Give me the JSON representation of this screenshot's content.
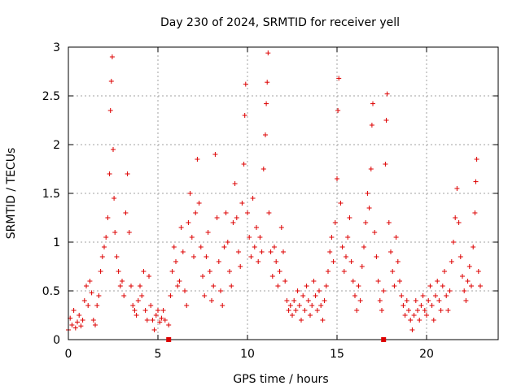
{
  "chart_data": {
    "type": "scatter",
    "title": "Day 230 of 2024, SRMTID for receiver yell",
    "xlabel": "GPS time / hours",
    "ylabel": "SRMTID / TECUs",
    "xlim": [
      0,
      24
    ],
    "ylim": [
      0,
      3
    ],
    "grid": true,
    "marker": "plus",
    "color": "#dd0000",
    "x_ticks": [
      {
        "value": 0,
        "label": "0"
      },
      {
        "value": 5,
        "label": "5"
      },
      {
        "value": 10,
        "label": "10"
      },
      {
        "value": 15,
        "label": "15"
      },
      {
        "value": 20,
        "label": "20"
      }
    ],
    "y_ticks": [
      {
        "value": 0,
        "label": "0"
      },
      {
        "value": 0.5,
        "label": "0.5"
      },
      {
        "value": 1,
        "label": "1"
      },
      {
        "value": 1.5,
        "label": "1.5"
      },
      {
        "value": 2,
        "label": "2"
      },
      {
        "value": 2.5,
        "label": "2.5"
      },
      {
        "value": 3,
        "label": "3"
      }
    ],
    "series": [
      {
        "name": "SRMTID",
        "points": [
          [
            0.0,
            0.1
          ],
          [
            0.1,
            0.22
          ],
          [
            0.2,
            0.15
          ],
          [
            0.3,
            0.3
          ],
          [
            0.4,
            0.12
          ],
          [
            0.5,
            0.18
          ],
          [
            0.6,
            0.25
          ],
          [
            0.7,
            0.14
          ],
          [
            0.8,
            0.2
          ],
          [
            0.9,
            0.4
          ],
          [
            1.0,
            0.55
          ],
          [
            1.1,
            0.35
          ],
          [
            1.2,
            0.6
          ],
          [
            1.3,
            0.48
          ],
          [
            1.4,
            0.2
          ],
          [
            1.5,
            0.15
          ],
          [
            1.6,
            0.35
          ],
          [
            1.7,
            0.45
          ],
          [
            1.8,
            0.7
          ],
          [
            1.9,
            0.85
          ],
          [
            2.0,
            0.95
          ],
          [
            2.1,
            1.05
          ],
          [
            2.2,
            1.25
          ],
          [
            2.3,
            1.7
          ],
          [
            2.35,
            2.35
          ],
          [
            2.4,
            2.65
          ],
          [
            2.45,
            2.9
          ],
          [
            2.5,
            1.95
          ],
          [
            2.55,
            1.45
          ],
          [
            2.6,
            1.1
          ],
          [
            2.7,
            0.85
          ],
          [
            2.8,
            0.7
          ],
          [
            2.9,
            0.55
          ],
          [
            3.0,
            0.6
          ],
          [
            3.1,
            0.45
          ],
          [
            3.2,
            1.3
          ],
          [
            3.3,
            1.7
          ],
          [
            3.4,
            1.1
          ],
          [
            3.5,
            0.55
          ],
          [
            3.6,
            0.35
          ],
          [
            3.7,
            0.3
          ],
          [
            3.8,
            0.25
          ],
          [
            3.9,
            0.4
          ],
          [
            4.0,
            0.55
          ],
          [
            4.1,
            0.45
          ],
          [
            4.2,
            0.7
          ],
          [
            4.3,
            0.3
          ],
          [
            4.4,
            0.2
          ],
          [
            4.5,
            0.65
          ],
          [
            4.6,
            0.35
          ],
          [
            4.7,
            0.2
          ],
          [
            4.8,
            0.1
          ],
          [
            4.9,
            0.25
          ],
          [
            5.0,
            0.3
          ],
          [
            5.1,
            0.18
          ],
          [
            5.2,
            0.22
          ],
          [
            5.3,
            0.3
          ],
          [
            5.4,
            0.2
          ],
          [
            5.6,
            0.15
          ],
          [
            5.7,
            0.45
          ],
          [
            5.8,
            0.7
          ],
          [
            5.9,
            0.95
          ],
          [
            6.0,
            0.8
          ],
          [
            6.1,
            0.55
          ],
          [
            6.2,
            0.6
          ],
          [
            6.3,
            1.15
          ],
          [
            6.4,
            0.9
          ],
          [
            6.5,
            0.5
          ],
          [
            6.6,
            0.35
          ],
          [
            6.7,
            1.2
          ],
          [
            6.8,
            1.5
          ],
          [
            6.9,
            1.05
          ],
          [
            7.0,
            0.85
          ],
          [
            7.1,
            1.3
          ],
          [
            7.2,
            1.85
          ],
          [
            7.3,
            1.4
          ],
          [
            7.4,
            0.95
          ],
          [
            7.5,
            0.65
          ],
          [
            7.6,
            0.45
          ],
          [
            7.7,
            0.85
          ],
          [
            7.8,
            1.1
          ],
          [
            7.9,
            0.7
          ],
          [
            8.0,
            0.4
          ],
          [
            8.1,
            0.55
          ],
          [
            8.2,
            1.9
          ],
          [
            8.3,
            1.25
          ],
          [
            8.4,
            0.8
          ],
          [
            8.5,
            0.5
          ],
          [
            8.6,
            0.35
          ],
          [
            8.7,
            0.95
          ],
          [
            8.8,
            1.3
          ],
          [
            8.9,
            1.0
          ],
          [
            9.0,
            0.7
          ],
          [
            9.1,
            0.55
          ],
          [
            9.2,
            1.2
          ],
          [
            9.3,
            1.6
          ],
          [
            9.4,
            1.25
          ],
          [
            9.5,
            0.9
          ],
          [
            9.6,
            0.75
          ],
          [
            9.7,
            1.4
          ],
          [
            9.8,
            1.8
          ],
          [
            9.85,
            2.3
          ],
          [
            9.9,
            2.62
          ],
          [
            10.0,
            1.3
          ],
          [
            10.1,
            1.05
          ],
          [
            10.2,
            0.85
          ],
          [
            10.3,
            1.45
          ],
          [
            10.4,
            0.95
          ],
          [
            10.5,
            1.15
          ],
          [
            10.6,
            0.8
          ],
          [
            10.7,
            1.05
          ],
          [
            10.8,
            0.9
          ],
          [
            10.9,
            1.75
          ],
          [
            11.0,
            2.1
          ],
          [
            11.05,
            2.42
          ],
          [
            11.1,
            2.64
          ],
          [
            11.15,
            2.94
          ],
          [
            11.2,
            1.3
          ],
          [
            11.3,
            0.9
          ],
          [
            11.4,
            0.65
          ],
          [
            11.5,
            0.95
          ],
          [
            11.6,
            0.8
          ],
          [
            11.7,
            0.55
          ],
          [
            11.8,
            0.7
          ],
          [
            11.9,
            1.15
          ],
          [
            12.0,
            0.9
          ],
          [
            12.1,
            0.6
          ],
          [
            12.2,
            0.4
          ],
          [
            12.3,
            0.3
          ],
          [
            12.4,
            0.35
          ],
          [
            12.5,
            0.25
          ],
          [
            12.6,
            0.4
          ],
          [
            12.7,
            0.3
          ],
          [
            12.8,
            0.5
          ],
          [
            12.9,
            0.35
          ],
          [
            13.0,
            0.2
          ],
          [
            13.1,
            0.45
          ],
          [
            13.2,
            0.3
          ],
          [
            13.3,
            0.55
          ],
          [
            13.4,
            0.4
          ],
          [
            13.5,
            0.25
          ],
          [
            13.6,
            0.35
          ],
          [
            13.7,
            0.6
          ],
          [
            13.8,
            0.45
          ],
          [
            13.9,
            0.3
          ],
          [
            14.0,
            0.5
          ],
          [
            14.1,
            0.35
          ],
          [
            14.2,
            0.2
          ],
          [
            14.3,
            0.4
          ],
          [
            14.4,
            0.55
          ],
          [
            14.5,
            0.7
          ],
          [
            14.6,
            0.9
          ],
          [
            14.7,
            1.05
          ],
          [
            14.8,
            0.8
          ],
          [
            14.9,
            1.2
          ],
          [
            15.0,
            1.65
          ],
          [
            15.05,
            2.35
          ],
          [
            15.1,
            2.68
          ],
          [
            15.2,
            1.4
          ],
          [
            15.3,
            0.95
          ],
          [
            15.4,
            0.7
          ],
          [
            15.5,
            0.85
          ],
          [
            15.6,
            1.05
          ],
          [
            15.7,
            1.25
          ],
          [
            15.8,
            0.8
          ],
          [
            15.9,
            0.6
          ],
          [
            16.0,
            0.45
          ],
          [
            16.1,
            0.3
          ],
          [
            16.2,
            0.55
          ],
          [
            16.3,
            0.4
          ],
          [
            16.4,
            0.75
          ],
          [
            16.5,
            0.95
          ],
          [
            16.6,
            1.2
          ],
          [
            16.7,
            1.5
          ],
          [
            16.8,
            1.35
          ],
          [
            16.9,
            1.75
          ],
          [
            16.95,
            2.2
          ],
          [
            17.0,
            2.42
          ],
          [
            17.1,
            1.1
          ],
          [
            17.2,
            0.85
          ],
          [
            17.3,
            0.6
          ],
          [
            17.4,
            0.4
          ],
          [
            17.5,
            0.3
          ],
          [
            17.6,
            0.5
          ],
          [
            17.7,
            1.8
          ],
          [
            17.75,
            2.25
          ],
          [
            17.8,
            2.52
          ],
          [
            17.9,
            1.2
          ],
          [
            18.0,
            0.9
          ],
          [
            18.1,
            0.7
          ],
          [
            18.2,
            0.55
          ],
          [
            18.3,
            1.05
          ],
          [
            18.4,
            0.8
          ],
          [
            18.5,
            0.6
          ],
          [
            18.6,
            0.45
          ],
          [
            18.7,
            0.35
          ],
          [
            18.8,
            0.25
          ],
          [
            18.9,
            0.4
          ],
          [
            19.0,
            0.3
          ],
          [
            19.1,
            0.2
          ],
          [
            19.2,
            0.1
          ],
          [
            19.3,
            0.25
          ],
          [
            19.4,
            0.4
          ],
          [
            19.5,
            0.3
          ],
          [
            19.6,
            0.2
          ],
          [
            19.7,
            0.35
          ],
          [
            19.8,
            0.45
          ],
          [
            19.9,
            0.3
          ],
          [
            20.0,
            0.25
          ],
          [
            20.1,
            0.4
          ],
          [
            20.2,
            0.55
          ],
          [
            20.3,
            0.35
          ],
          [
            20.4,
            0.2
          ],
          [
            20.5,
            0.45
          ],
          [
            20.6,
            0.6
          ],
          [
            20.7,
            0.4
          ],
          [
            20.8,
            0.3
          ],
          [
            20.9,
            0.55
          ],
          [
            21.0,
            0.7
          ],
          [
            21.1,
            0.45
          ],
          [
            21.2,
            0.3
          ],
          [
            21.3,
            0.5
          ],
          [
            21.4,
            0.8
          ],
          [
            21.5,
            1.0
          ],
          [
            21.6,
            1.25
          ],
          [
            21.7,
            1.55
          ],
          [
            21.8,
            1.2
          ],
          [
            21.9,
            0.85
          ],
          [
            22.0,
            0.65
          ],
          [
            22.1,
            0.5
          ],
          [
            22.2,
            0.4
          ],
          [
            22.3,
            0.6
          ],
          [
            22.4,
            0.75
          ],
          [
            22.5,
            0.55
          ],
          [
            22.6,
            0.95
          ],
          [
            22.7,
            1.3
          ],
          [
            22.75,
            1.62
          ],
          [
            22.8,
            1.85
          ],
          [
            22.9,
            0.7
          ],
          [
            23.0,
            0.55
          ]
        ]
      }
    ],
    "axis_markers": [
      5.6,
      17.6
    ]
  }
}
